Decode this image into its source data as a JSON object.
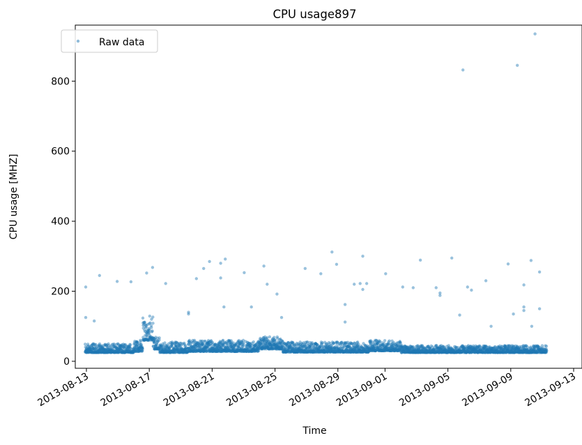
{
  "chart_data": {
    "type": "scatter",
    "title": "CPU usage897",
    "xlabel": "Time",
    "ylabel": "CPU usage [MHZ]",
    "x_type": "date",
    "xlim": [
      "2013-08-12T07:00",
      "2013-09-13T00:00"
    ],
    "ylim": [
      -20,
      960
    ],
    "x_ticks": [
      "2013-08-13",
      "2013-08-17",
      "2013-08-21",
      "2013-08-25",
      "2013-08-29",
      "2013-09-01",
      "2013-09-05",
      "2013-09-09",
      "2013-09-13"
    ],
    "y_ticks": [
      0,
      200,
      400,
      600,
      800
    ],
    "grid": false,
    "legend": {
      "position": "top-left",
      "entries": [
        "Raw data"
      ]
    },
    "marker_color": "#1f77b4",
    "series": [
      {
        "name": "Raw data",
        "data_start": "2013-08-12T22:00",
        "data_end": "2013-09-11T07:00",
        "typical_range": [
          25,
          45
        ],
        "dense_segments": [
          {
            "start": "2013-08-12T22:00",
            "end": "2013-08-16T00:00",
            "low": 25,
            "high": 50
          },
          {
            "start": "2013-08-16T00:00",
            "end": "2013-08-16T14:00",
            "low": 28,
            "high": 60
          },
          {
            "start": "2013-08-16T14:00",
            "end": "2013-08-17T06:00",
            "low": 60,
            "high": 130
          },
          {
            "start": "2013-08-17T06:00",
            "end": "2013-08-17T16:00",
            "low": 35,
            "high": 70
          },
          {
            "start": "2013-08-17T16:00",
            "end": "2013-08-19T12:00",
            "low": 25,
            "high": 55
          },
          {
            "start": "2013-08-19T12:00",
            "end": "2013-08-24T00:00",
            "low": 28,
            "high": 60
          },
          {
            "start": "2013-08-24T00:00",
            "end": "2013-08-25T12:00",
            "low": 35,
            "high": 70
          },
          {
            "start": "2013-08-25T12:00",
            "end": "2013-08-31T00:00",
            "low": 26,
            "high": 55
          },
          {
            "start": "2013-08-31T00:00",
            "end": "2013-09-02T00:00",
            "low": 30,
            "high": 60
          },
          {
            "start": "2013-09-02T00:00",
            "end": "2013-09-11T07:00",
            "low": 25,
            "high": 45
          }
        ],
        "outliers": [
          [
            "2013-08-12T23:00",
            212
          ],
          [
            "2013-08-12T23:00",
            125
          ],
          [
            "2013-08-13T12:00",
            115
          ],
          [
            "2013-08-13T20:00",
            245
          ],
          [
            "2013-08-14T23:00",
            228
          ],
          [
            "2013-08-15T20:00",
            227
          ],
          [
            "2013-08-16T20:00",
            252
          ],
          [
            "2013-08-17T05:00",
            268
          ],
          [
            "2013-08-18T01:00",
            222
          ],
          [
            "2013-08-19T12:00",
            140
          ],
          [
            "2013-08-19T12:00",
            135
          ],
          [
            "2013-08-20T00:00",
            236
          ],
          [
            "2013-08-20T11:00",
            265
          ],
          [
            "2013-08-20T20:00",
            285
          ],
          [
            "2013-08-21T13:00",
            280
          ],
          [
            "2013-08-21T13:00",
            238
          ],
          [
            "2013-08-21T20:00",
            292
          ],
          [
            "2013-08-21T18:00",
            155
          ],
          [
            "2013-08-23T01:00",
            253
          ],
          [
            "2013-08-23T12:00",
            155
          ],
          [
            "2013-08-24T07:00",
            272
          ],
          [
            "2013-08-24T12:00",
            220
          ],
          [
            "2013-08-25T03:00",
            192
          ],
          [
            "2013-08-25T10:00",
            125
          ],
          [
            "2013-08-26T22:00",
            265
          ],
          [
            "2013-08-27T22:00",
            250
          ],
          [
            "2013-08-28T15:00",
            312
          ],
          [
            "2013-08-28T22:00",
            277
          ],
          [
            "2013-08-29T11:00",
            162
          ],
          [
            "2013-08-29T11:00",
            112
          ],
          [
            "2013-08-30T01:00",
            220
          ],
          [
            "2013-08-30T14:00",
            300
          ],
          [
            "2013-08-30T10:00",
            222
          ],
          [
            "2013-08-30T14:00",
            205
          ],
          [
            "2013-08-30T20:00",
            222
          ],
          [
            "2013-09-01T01:00",
            250
          ],
          [
            "2013-09-02T03:00",
            212
          ],
          [
            "2013-09-02T19:00",
            210
          ],
          [
            "2013-09-03T06:00",
            289
          ],
          [
            "2013-09-04T06:00",
            210
          ],
          [
            "2013-09-04T12:00",
            195
          ],
          [
            "2013-09-04T12:00",
            188
          ],
          [
            "2013-09-05T06:00",
            295
          ],
          [
            "2013-09-05T18:00",
            132
          ],
          [
            "2013-09-05T23:00",
            832
          ],
          [
            "2013-09-06T06:00",
            212
          ],
          [
            "2013-09-06T12:00",
            203
          ],
          [
            "2013-09-07T10:00",
            230
          ],
          [
            "2013-09-08T20:00",
            278
          ],
          [
            "2013-09-09T10:00",
            845
          ],
          [
            "2013-09-09T20:00",
            218
          ],
          [
            "2013-09-09T20:00",
            155
          ],
          [
            "2013-09-09T20:00",
            145
          ],
          [
            "2013-09-10T07:00",
            288
          ],
          [
            "2013-09-10T13:00",
            935
          ],
          [
            "2013-09-10T20:00",
            255
          ],
          [
            "2013-09-10T20:00",
            150
          ],
          [
            "2013-09-10T08:00",
            100
          ],
          [
            "2013-09-09T04:00",
            135
          ],
          [
            "2013-09-07T18:00",
            100
          ]
        ]
      }
    ]
  }
}
